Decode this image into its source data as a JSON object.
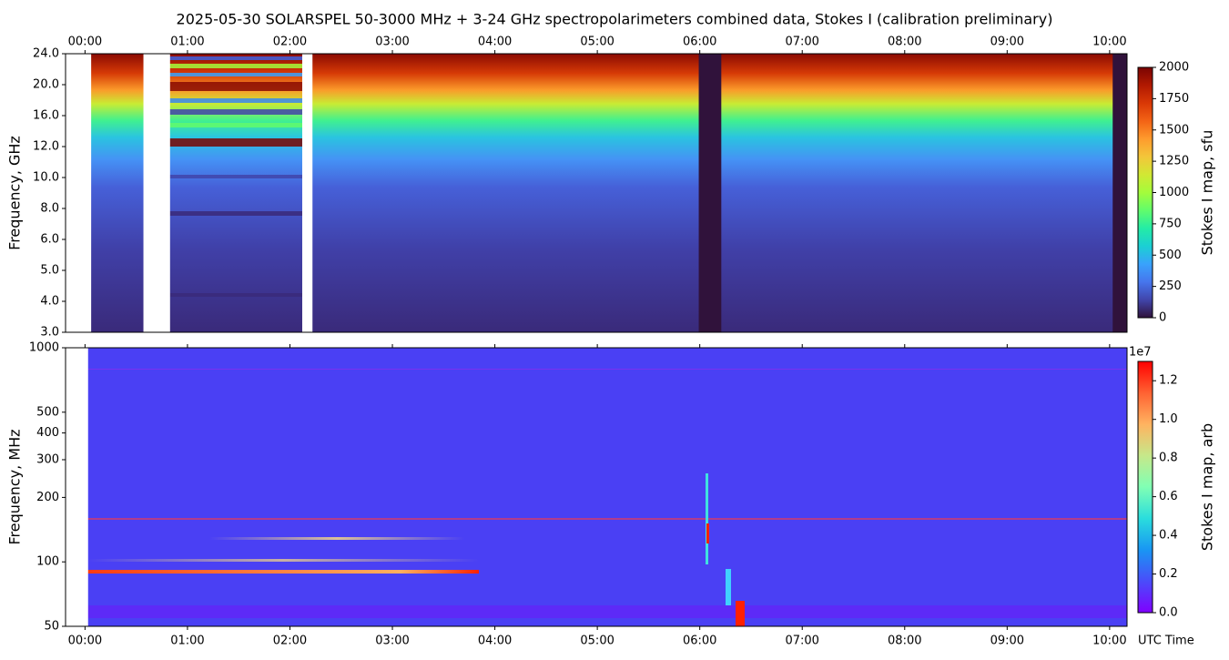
{
  "chart_data": [
    {
      "type": "heatmap",
      "title": "2025-05-30  SOLARSPEL  50-3000 MHz  +  3-24 GHz  spectropolarimeters combined data,  Stokes I  (calibration preliminary)",
      "ylabel": "Frequency, GHz",
      "xlim": [
        -0.19,
        10.17
      ],
      "xticks": [
        {
          "value": 0,
          "label": "00:00"
        },
        {
          "value": 1,
          "label": "01:00"
        },
        {
          "value": 2,
          "label": "02:00"
        },
        {
          "value": 3,
          "label": "03:00"
        },
        {
          "value": 4,
          "label": "04:00"
        },
        {
          "value": 5,
          "label": "05:00"
        },
        {
          "value": 6,
          "label": "06:00"
        },
        {
          "value": 7,
          "label": "07:00"
        },
        {
          "value": 8,
          "label": "08:00"
        },
        {
          "value": 9,
          "label": "09:00"
        },
        {
          "value": 10,
          "label": "10:00"
        }
      ],
      "y_scale": "index",
      "yticks": [
        {
          "value": 3,
          "label": "3.0"
        },
        {
          "value": 4,
          "label": "4.0"
        },
        {
          "value": 5,
          "label": "5.0"
        },
        {
          "value": 6,
          "label": "6.0"
        },
        {
          "value": 8,
          "label": "8.0"
        },
        {
          "value": 10,
          "label": "10.0"
        },
        {
          "value": 12,
          "label": "12.0"
        },
        {
          "value": 16,
          "label": "16.0"
        },
        {
          "value": 20,
          "label": "20.0"
        },
        {
          "value": 24,
          "label": "24.0"
        }
      ],
      "no_data": [
        [
          -0.19,
          0.06
        ],
        [
          0.57,
          0.83
        ],
        [
          2.12,
          2.22
        ]
      ],
      "near_zero": [
        [
          5.99,
          6.21
        ],
        [
          10.03,
          10.17
        ]
      ],
      "colormap": [
        "#30123b",
        "#4145ab",
        "#4675ed",
        "#39a2fc",
        "#1bcfd4",
        "#24eca6",
        "#61fc6c",
        "#a4fc3b",
        "#d1e834",
        "#f3c63a",
        "#fe9b2d",
        "#f36315",
        "#d93806",
        "#b11901",
        "#7a0402"
      ],
      "colorbar": {
        "label": "Stokes I map, sfu",
        "lim": [
          0,
          2000
        ],
        "ticks": [
          0,
          250,
          500,
          750,
          1000,
          1250,
          1500,
          1750,
          2000
        ]
      }
    },
    {
      "type": "heatmap",
      "ylabel": "Frequency, MHz",
      "xlabel": "UTC Time",
      "xlim": [
        -0.19,
        10.17
      ],
      "xticks": [
        {
          "value": 0,
          "label": "00:00"
        },
        {
          "value": 1,
          "label": "01:00"
        },
        {
          "value": 2,
          "label": "02:00"
        },
        {
          "value": 3,
          "label": "03:00"
        },
        {
          "value": 4,
          "label": "04:00"
        },
        {
          "value": 5,
          "label": "05:00"
        },
        {
          "value": 6,
          "label": "06:00"
        },
        {
          "value": 7,
          "label": "07:00"
        },
        {
          "value": 8,
          "label": "08:00"
        },
        {
          "value": 9,
          "label": "09:00"
        },
        {
          "value": 10,
          "label": "10:00"
        }
      ],
      "y_scale": "log",
      "ylim": [
        50,
        1000
      ],
      "yticks": [
        50,
        100,
        200,
        300,
        400,
        500,
        1000
      ],
      "no_data": [
        [
          -0.19,
          0.03
        ]
      ],
      "colormap": [
        "#8000ff",
        "#4a4cfa",
        "#1996f3",
        "#2adddd",
        "#80ffb4",
        "#c6e88a",
        "#ffb360",
        "#ff6232",
        "#ff0000"
      ],
      "colorbar": {
        "label": "Stokes I map, arb",
        "offset": "1e7",
        "lim": [
          0,
          1.3
        ],
        "ticks": [
          {
            "value": 0,
            "label": "0.0"
          },
          {
            "value": 0.2,
            "label": "0.2"
          },
          {
            "value": 0.4,
            "label": "0.4"
          },
          {
            "value": 0.6,
            "label": "0.6"
          },
          {
            "value": 0.8,
            "label": "0.8"
          },
          {
            "value": 1.0,
            "label": "1.0"
          },
          {
            "value": 1.2,
            "label": "1.2"
          }
        ]
      }
    }
  ]
}
